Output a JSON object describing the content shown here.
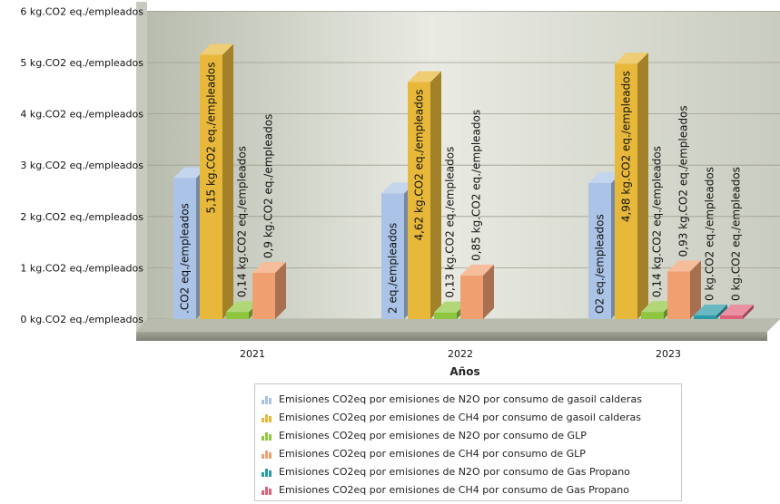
{
  "chart_data": {
    "type": "bar",
    "title": "",
    "xlabel": "Años",
    "ylabel": "",
    "ylim": [
      0,
      6
    ],
    "y_ticks": [
      "0 kg.CO2 eq./empleados",
      "1 kg.CO2 eq./empleados",
      "2 kg.CO2 eq./empleados",
      "3 kg.CO2 eq./empleados",
      "4 kg.CO2 eq./empleados",
      "5 kg.CO2 eq./empleados",
      "6 kg.CO2 eq./empleados"
    ],
    "categories": [
      "2021",
      "2022",
      "2023"
    ],
    "series": [
      {
        "name": "Emisiones CO2eq por emisiones de N2O por consumo de gasoil calderas",
        "values": [
          2.75,
          2.45,
          2.65
        ],
        "labels": [
          ".CO2 eq./empleados",
          "2 eq./empleados",
          "O2 eq./empleados"
        ],
        "color": "#aac3e6"
      },
      {
        "name": "Emisiones CO2eq por emisiones de CH4 por consumo de gasoil calderas",
        "values": [
          5.15,
          4.62,
          4.98
        ],
        "labels": [
          "5,15 kg.CO2 eq./empleados",
          "4,62 kg.CO2 eq./empleados",
          "4,98 kg.CO2 eq./empleados"
        ],
        "color": "#e8b83a"
      },
      {
        "name": "Emisiones CO2eq por emisiones de N2O por consumo de GLP",
        "values": [
          0.14,
          0.13,
          0.14
        ],
        "labels": [
          "0,14 kg.CO2 eq./empleados",
          "0,13 kg.CO2 eq./empleados",
          "0,14 kg.CO2 eq./empleados"
        ],
        "color": "#8fc640"
      },
      {
        "name": "Emisiones CO2eq por emisiones de CH4 por consumo de GLP",
        "values": [
          0.9,
          0.85,
          0.93
        ],
        "labels": [
          "0,9 kg.CO2 eq./empleados",
          "0,85 kg.CO2 eq./empleados",
          "0,93 kg.CO2 eq./empleados"
        ],
        "color": "#f0a070"
      },
      {
        "name": "Emisiones CO2eq por emisiones de N2O por consumo de Gas Propano",
        "values": [
          null,
          null,
          0
        ],
        "labels": [
          "",
          "",
          "0 kg.CO2 eq./empleados"
        ],
        "color": "#2a9aa6"
      },
      {
        "name": "Emisiones CO2eq por emisiones de CH4 por consumo de Gas Propano",
        "values": [
          null,
          null,
          0
        ],
        "labels": [
          "",
          "",
          "0 kg.CO2 eq./empleados"
        ],
        "color": "#e0607a"
      }
    ]
  }
}
